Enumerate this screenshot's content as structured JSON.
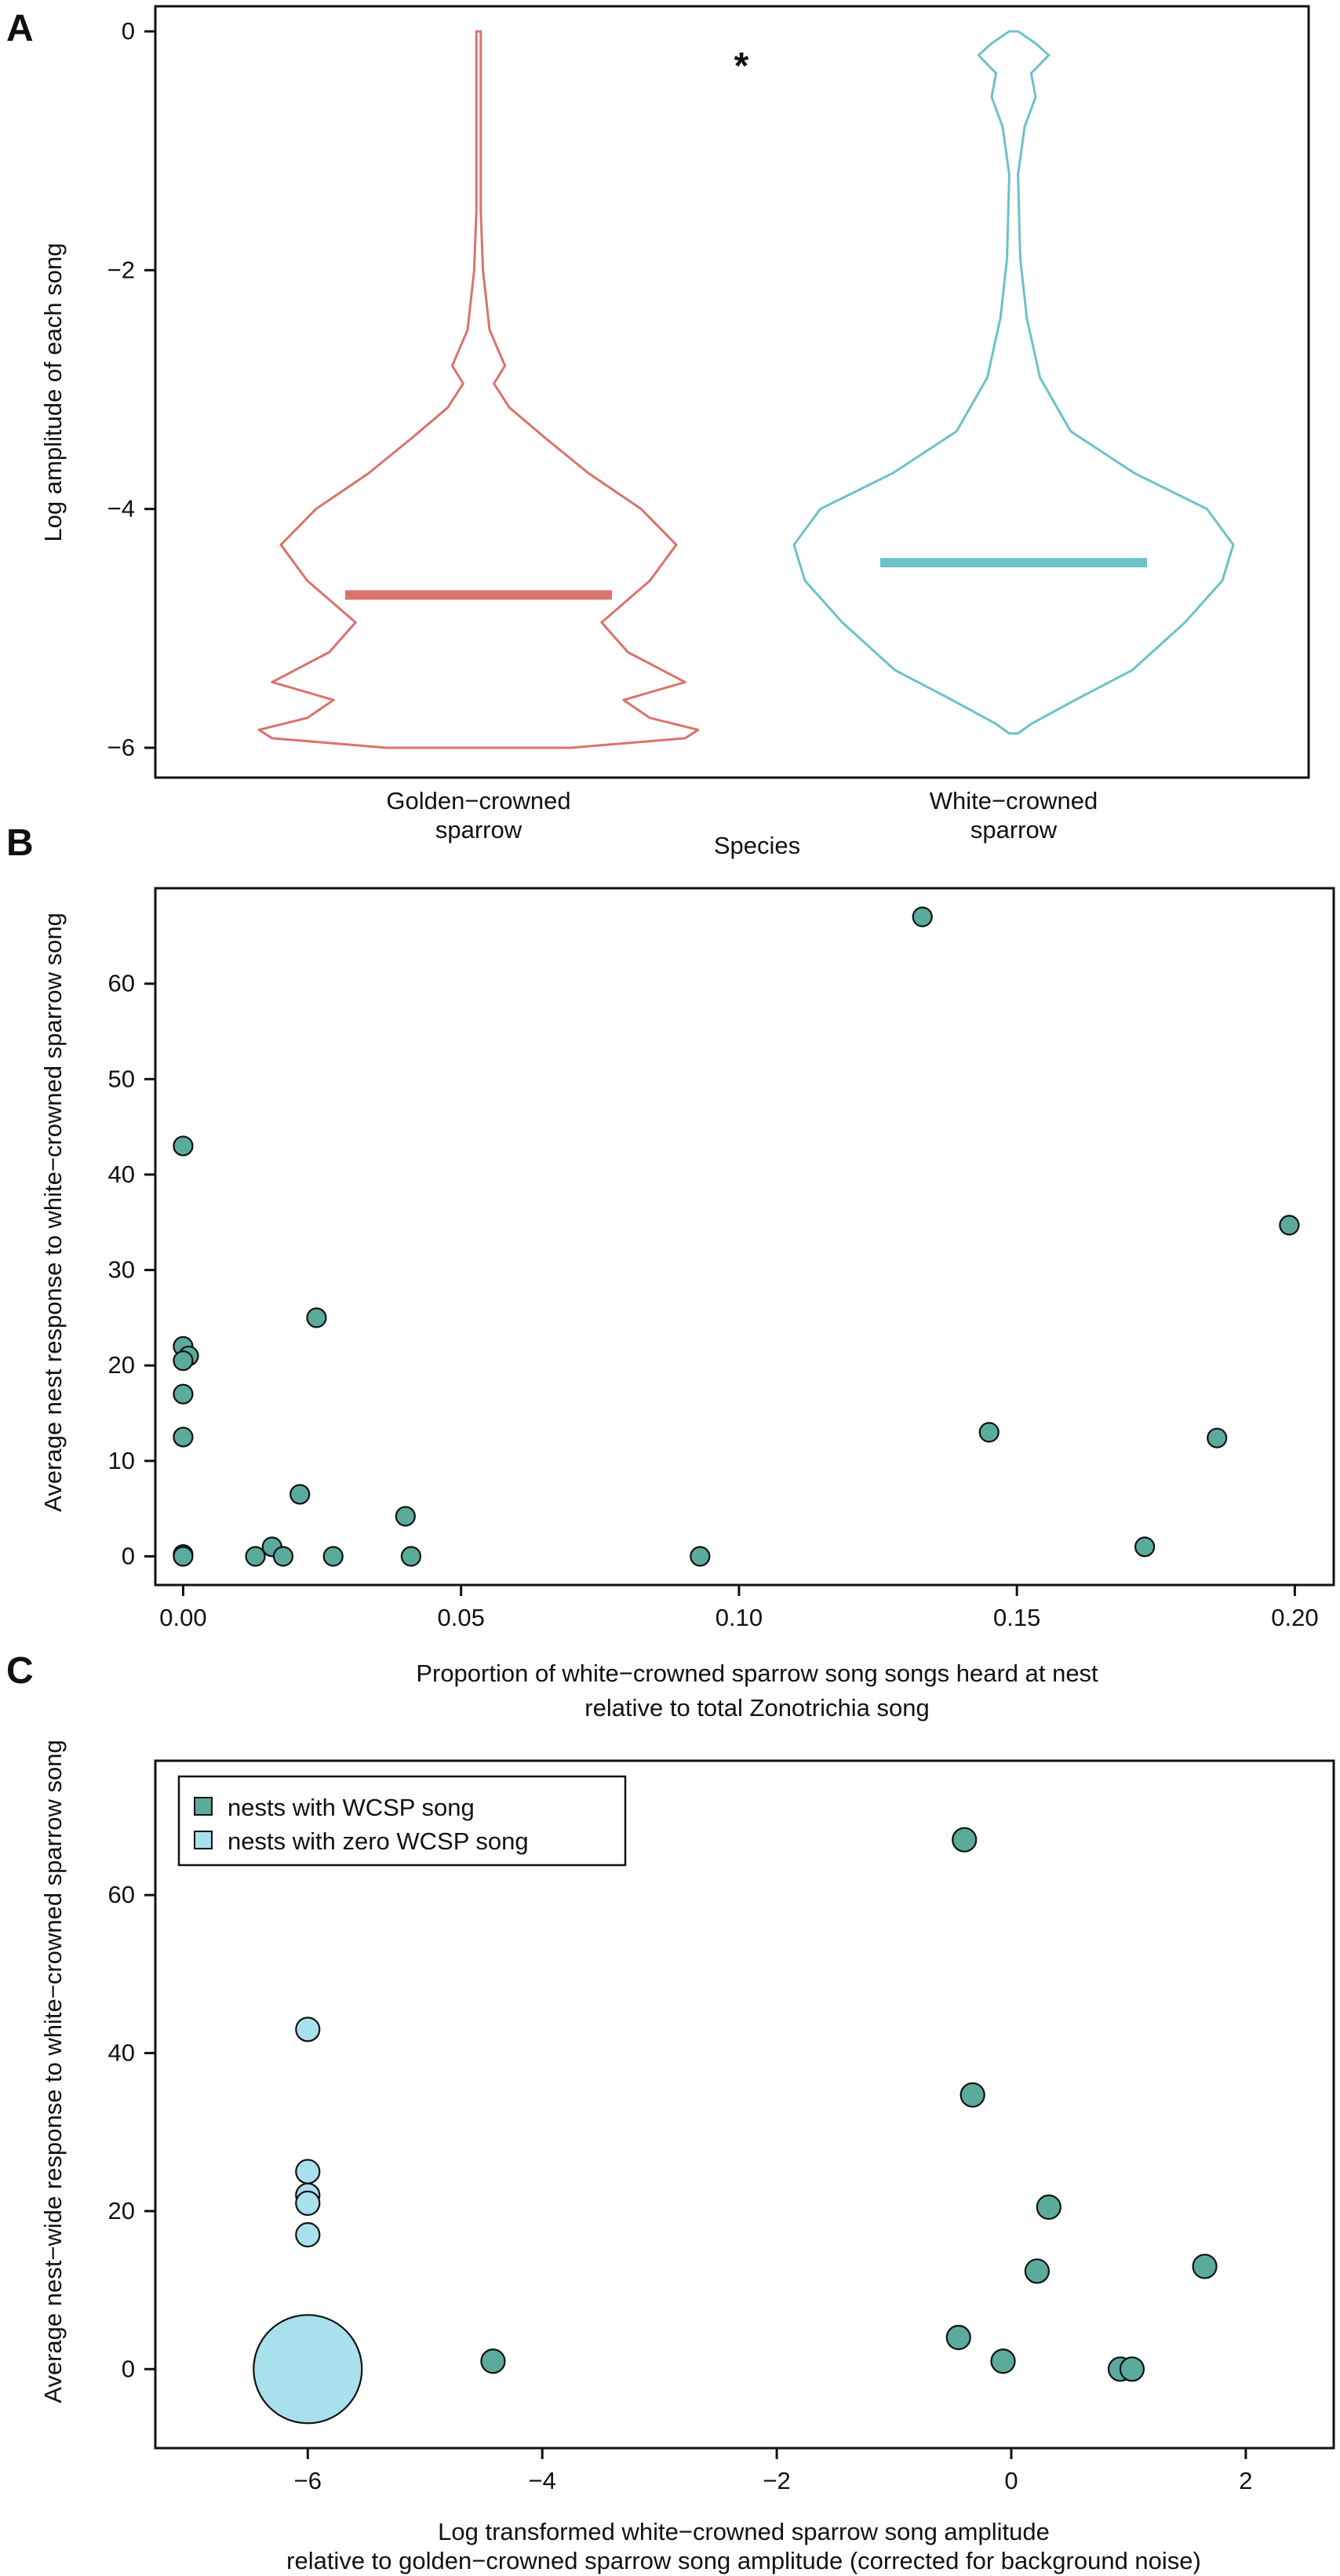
{
  "colors": {
    "golden": "#d9736c",
    "white_crowned": "#6cc2c6",
    "teal_point": "#5aab9c",
    "light_blue_point": "#a8e0ec",
    "axis": "#111111"
  },
  "chart_data": [
    {
      "panel": "A",
      "type": "violin",
      "xlabel": "Species",
      "ylabel": "Log amplitude of each song",
      "ylim": [
        -6,
        0
      ],
      "yticks": [
        "0",
        "−2",
        "−4",
        "−6"
      ],
      "annotation": "*",
      "categories": [
        "Golden−crowned sparrow",
        "White−crowned sparrow"
      ],
      "category_lines": [
        [
          "Golden−crowned",
          "sparrow"
        ],
        [
          "White−crowned",
          "sparrow"
        ]
      ],
      "series": [
        {
          "name": "Golden−crowned sparrow",
          "median": -4.72,
          "profile": [
            [
              0,
              0.01
            ],
            [
              -1.5,
              0.01
            ],
            [
              -2.0,
              0.02
            ],
            [
              -2.5,
              0.05
            ],
            [
              -2.8,
              0.12
            ],
            [
              -2.95,
              0.07
            ],
            [
              -3.15,
              0.14
            ],
            [
              -3.4,
              0.3
            ],
            [
              -3.7,
              0.5
            ],
            [
              -4.0,
              0.74
            ],
            [
              -4.3,
              0.9
            ],
            [
              -4.6,
              0.78
            ],
            [
              -4.95,
              0.56
            ],
            [
              -5.2,
              0.68
            ],
            [
              -5.45,
              0.94
            ],
            [
              -5.6,
              0.66
            ],
            [
              -5.75,
              0.78
            ],
            [
              -5.85,
              1.0
            ],
            [
              -5.92,
              0.94
            ],
            [
              -6.0,
              0.42
            ]
          ]
        },
        {
          "name": "White−crowned sparrow",
          "median": -4.45,
          "profile": [
            [
              0,
              0.02
            ],
            [
              -0.1,
              0.1
            ],
            [
              -0.2,
              0.16
            ],
            [
              -0.35,
              0.08
            ],
            [
              -0.55,
              0.1
            ],
            [
              -0.8,
              0.05
            ],
            [
              -1.2,
              0.02
            ],
            [
              -1.9,
              0.03
            ],
            [
              -2.4,
              0.06
            ],
            [
              -2.9,
              0.12
            ],
            [
              -3.35,
              0.26
            ],
            [
              -3.7,
              0.55
            ],
            [
              -4.0,
              0.88
            ],
            [
              -4.3,
              1.0
            ],
            [
              -4.6,
              0.95
            ],
            [
              -4.95,
              0.78
            ],
            [
              -5.35,
              0.54
            ],
            [
              -5.6,
              0.28
            ],
            [
              -5.8,
              0.08
            ],
            [
              -5.88,
              0.02
            ]
          ]
        }
      ]
    },
    {
      "panel": "B",
      "type": "scatter",
      "xlabel_lines": [
        "Proportion of white−crowned sparrow song songs heard at nest",
        "relative to total Zonotrichia song"
      ],
      "ylabel": "Average nest response to white−crowned sparrow song",
      "xlim": [
        -0.005,
        0.207
      ],
      "ylim": [
        -3,
        70
      ],
      "xticks": [
        0.0,
        0.05,
        0.1,
        0.15,
        0.2
      ],
      "xtick_labels": [
        "0.00",
        "0.05",
        "0.10",
        "0.15",
        "0.20"
      ],
      "yticks": [
        0,
        10,
        20,
        30,
        40,
        50,
        60
      ],
      "ytick_labels": [
        "0",
        "10",
        "20",
        "30",
        "40",
        "50",
        "60"
      ],
      "x": [
        0.0,
        0.0,
        0.001,
        0.0,
        0.0,
        0.0,
        0.0,
        0.0,
        0.013,
        0.016,
        0.018,
        0.021,
        0.024,
        0.027,
        0.04,
        0.041,
        0.093,
        0.133,
        0.145,
        0.173,
        0.186,
        0.199
      ],
      "y": [
        43,
        22,
        21,
        20.5,
        17,
        12.5,
        0.2,
        0,
        0,
        1,
        0,
        6.5,
        25,
        0,
        4.2,
        0,
        0,
        67,
        13,
        1,
        12.4,
        34.7
      ]
    },
    {
      "panel": "C",
      "type": "scatter",
      "xlabel_lines": [
        "Log transformed white−crowned sparrow song amplitude",
        "relative to golden−crowned sparrow song amplitude (corrected for background noise)"
      ],
      "ylabel": "Average nest−wide response to white−crowned sparrow song",
      "xlim": [
        -7.3,
        2.75
      ],
      "ylim": [
        -10,
        77
      ],
      "xticks": [
        -6,
        -4,
        -2,
        0,
        2
      ],
      "xtick_labels": [
        "−6",
        "−4",
        "−2",
        "0",
        "2"
      ],
      "yticks": [
        0,
        20,
        40,
        60
      ],
      "ytick_labels": [
        "0",
        "20",
        "40",
        "60"
      ],
      "legend": [
        "nests with WCSP song",
        "nests with zero WCSP song"
      ],
      "series": [
        {
          "name": "nests with WCSP song",
          "x": [
            -0.4,
            -0.33,
            0.32,
            1.65,
            0.22,
            -0.45,
            -0.07,
            0.93,
            1.03,
            -4.42
          ],
          "y": [
            67,
            34.7,
            20.5,
            13,
            12.4,
            4,
            1,
            0,
            0,
            1
          ]
        },
        {
          "name": "nests with zero WCSP song",
          "x": [
            -6,
            -6,
            -6,
            -6,
            -6,
            -6
          ],
          "y": [
            43,
            25,
            22,
            21,
            17,
            0
          ],
          "sizes": [
            1,
            1,
            1,
            1,
            1,
            4.6
          ]
        }
      ]
    }
  ]
}
